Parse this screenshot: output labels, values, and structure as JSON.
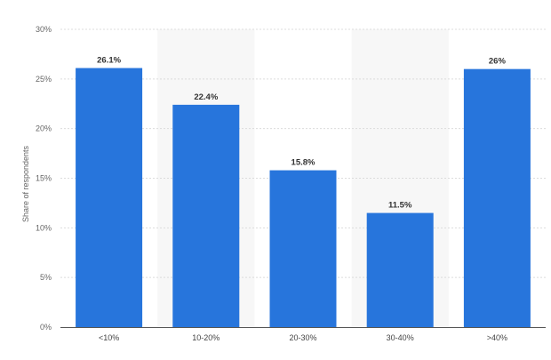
{
  "chart_data": {
    "type": "bar",
    "categories": [
      "<10%",
      "10-20%",
      "20-30%",
      "30-40%",
      ">40%"
    ],
    "values": [
      26.1,
      22.4,
      15.8,
      11.5,
      26
    ],
    "data_labels": [
      "26.1%",
      "22.4%",
      "15.8%",
      "11.5%",
      "26%"
    ],
    "xlabel": "",
    "ylabel": "Share of respondents",
    "ylim": [
      0,
      30
    ],
    "yticks": [
      0,
      5,
      10,
      15,
      20,
      25,
      30
    ],
    "ytick_labels": [
      "0%",
      "5%",
      "10%",
      "15%",
      "20%",
      "25%",
      "30%"
    ],
    "grid": true,
    "alternate_column_shading": true,
    "bar_color": "#2775dc"
  }
}
